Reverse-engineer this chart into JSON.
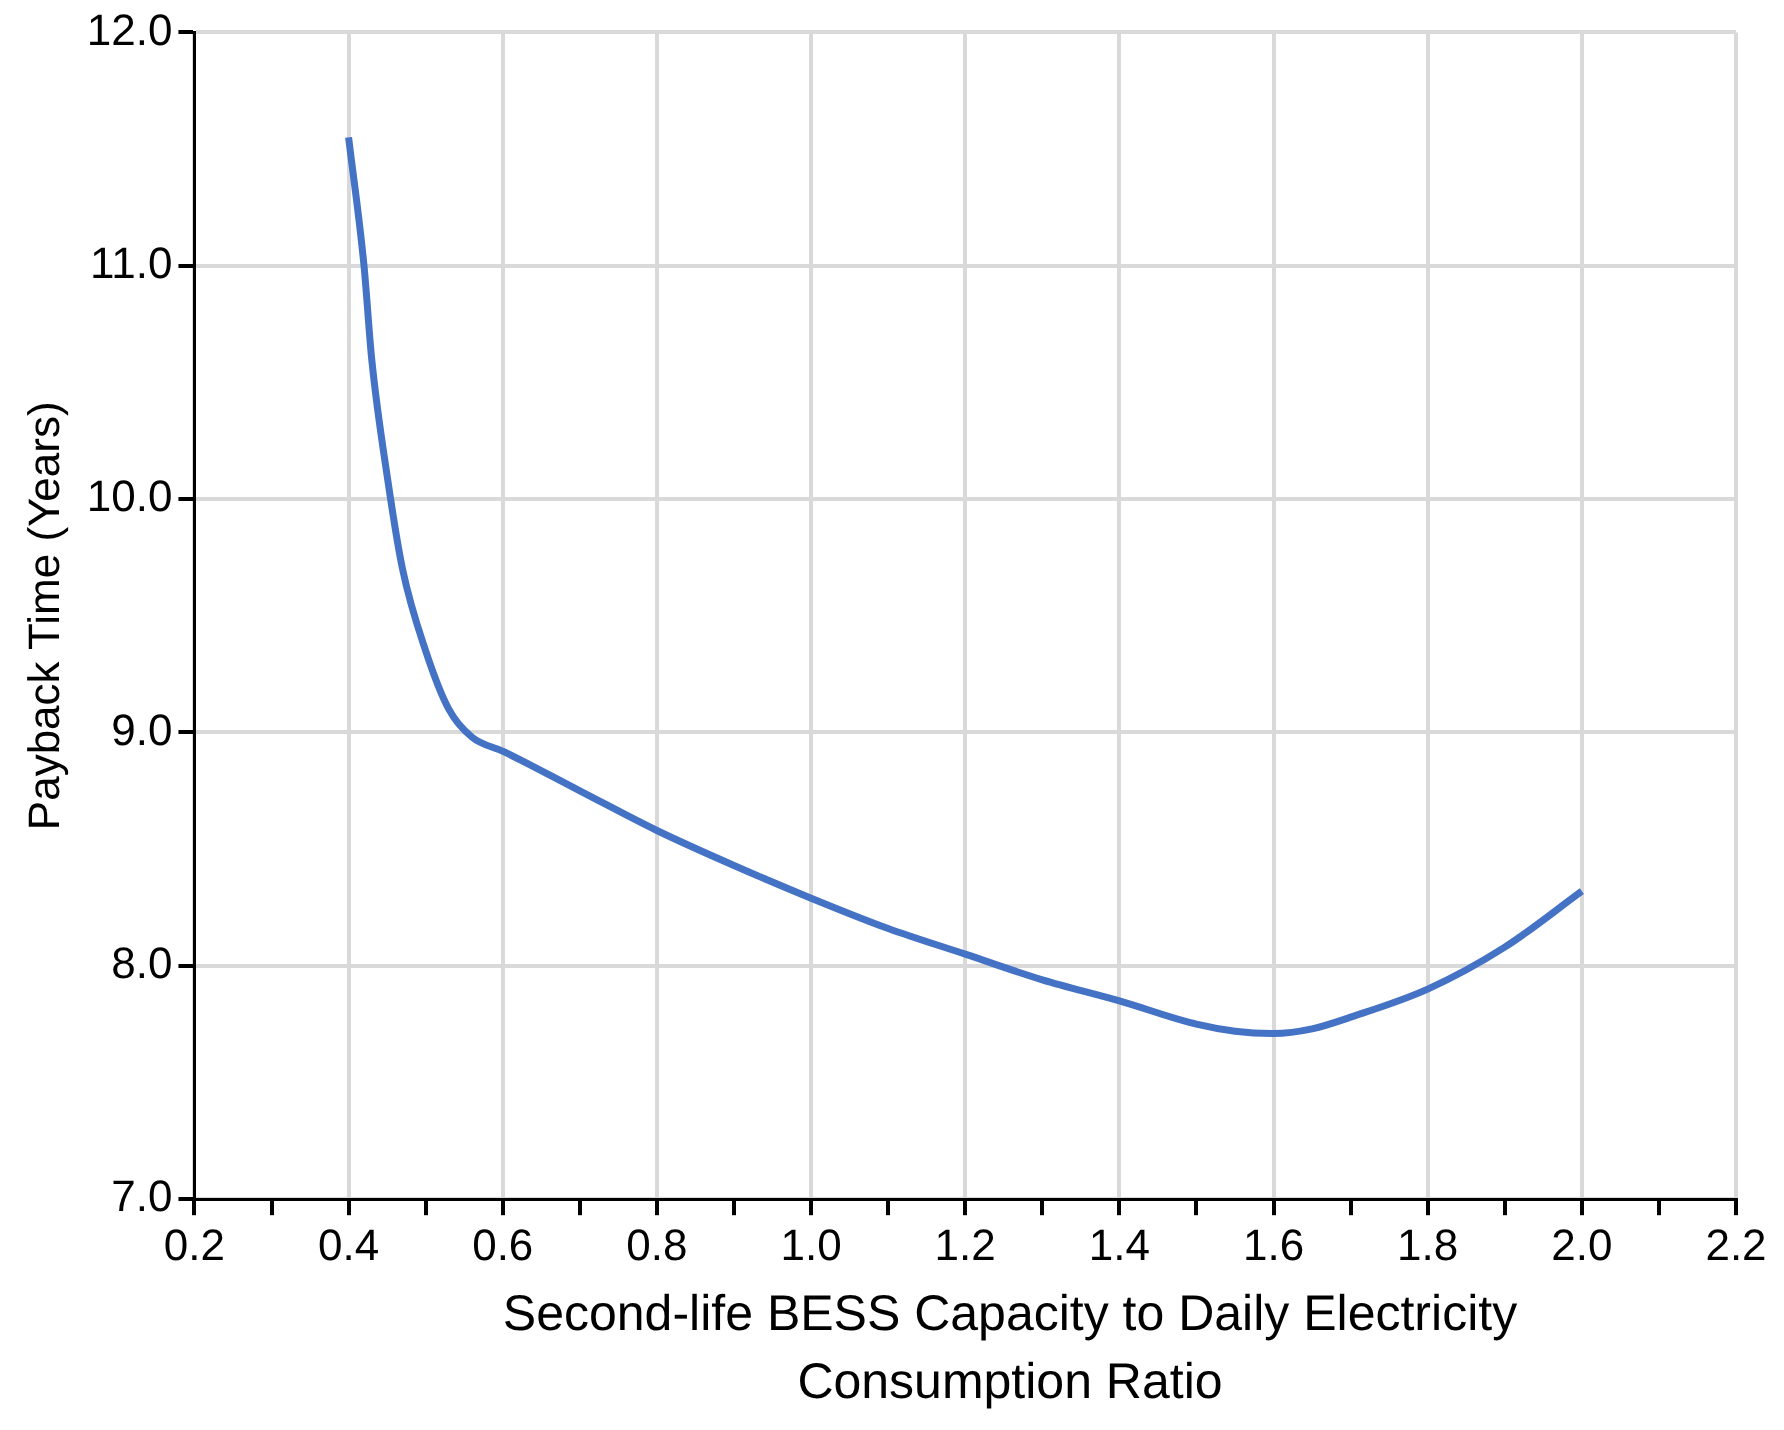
{
  "chart_data": {
    "type": "line",
    "xlabel": "Second-life BESS Capacity to Daily Electricity Consumption Ratio",
    "ylabel": "Payback Time (Years)",
    "x": [
      0.4,
      0.42,
      0.43,
      0.45,
      0.47,
      0.5,
      0.53,
      0.56,
      0.6,
      0.7,
      0.8,
      0.9,
      1.0,
      1.1,
      1.2,
      1.3,
      1.4,
      1.5,
      1.55,
      1.6,
      1.65,
      1.7,
      1.8,
      1.9,
      2.0
    ],
    "series": [
      {
        "color": "#4472c4",
        "values": [
          11.55,
          11.0,
          10.6,
          10.1,
          9.7,
          9.35,
          9.1,
          8.98,
          8.92,
          8.75,
          8.58,
          8.43,
          8.29,
          8.16,
          8.05,
          7.94,
          7.85,
          7.75,
          7.72,
          7.71,
          7.73,
          7.78,
          7.9,
          8.08,
          8.32
        ]
      }
    ],
    "xlim": [
      0.2,
      2.2
    ],
    "xticks": [
      0.2,
      {
        "value": 0.3,
        "label": null
      },
      0.4,
      {
        "value": 0.5,
        "label": null
      },
      0.6,
      {
        "value": 0.7,
        "label": null
      },
      0.8,
      {
        "value": 0.9,
        "label": null
      },
      {
        "value": 1.0,
        "label": "1.0"
      },
      {
        "value": 1.1,
        "label": null
      },
      1.2,
      {
        "value": 1.3,
        "label": null
      },
      1.4,
      {
        "value": 1.5,
        "label": null
      },
      1.6,
      {
        "value": 1.7,
        "label": null
      },
      1.8,
      {
        "value": 1.9,
        "label": null
      },
      {
        "value": 2.0,
        "label": "2.0"
      },
      {
        "value": 2.1,
        "label": null
      },
      2.2
    ],
    "ylim": [
      7.0,
      12.0
    ],
    "yticks": [
      {
        "value": 7,
        "label": "7.0"
      },
      {
        "value": 8,
        "label": "8.0"
      },
      {
        "value": 9,
        "label": "9.0"
      },
      {
        "value": 10,
        "label": "10.0"
      },
      {
        "value": 11,
        "label": "11.0"
      },
      {
        "value": 12,
        "label": "12.0"
      }
    ],
    "grid": true,
    "legend": false,
    "marker": "none",
    "line_style": "solid"
  }
}
